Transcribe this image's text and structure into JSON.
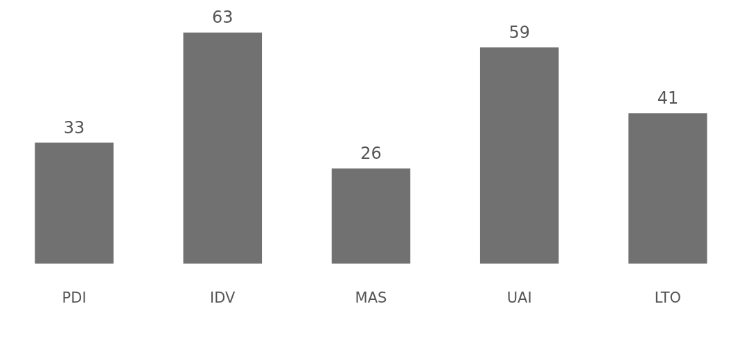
{
  "chart_data": {
    "type": "bar",
    "categories": [
      "PDI",
      "IDV",
      "MAS",
      "UAI",
      "LTO"
    ],
    "values": [
      33,
      63,
      26,
      59,
      41
    ],
    "color": "#717171",
    "data_labels": true,
    "grid": false,
    "legend": false,
    "tick_labels": "x"
  }
}
